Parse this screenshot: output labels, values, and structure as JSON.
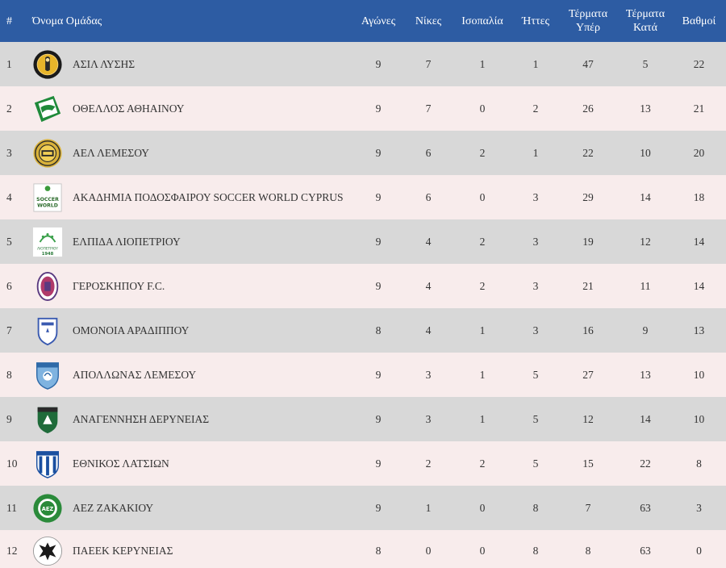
{
  "headers": {
    "pos": "#",
    "team": "Όνομα Ομάδας",
    "played": "Αγώνες",
    "wins": "Νίκες",
    "draws": "Ισοπαλία",
    "losses": "Ήττες",
    "gf": [
      "Τέρματα",
      "Υπέρ"
    ],
    "ga": [
      "Τέρματα",
      "Κατά"
    ],
    "points": "Βαθμοί"
  },
  "rows": [
    {
      "pos": "1",
      "team": "ΑΣΙΛ ΛΥΣΗΣ",
      "played": "9",
      "wins": "7",
      "draws": "1",
      "losses": "1",
      "gf": "47",
      "ga": "5",
      "points": "22",
      "logo_icon": "asil-lysis-crest-icon"
    },
    {
      "pos": "2",
      "team": "ΟΘΕΛΛΟΣ ΑΘΗΑΙΝΟΥ",
      "played": "9",
      "wins": "7",
      "draws": "0",
      "losses": "2",
      "gf": "26",
      "ga": "13",
      "points": "21",
      "logo_icon": "othellos-athienou-crest-icon"
    },
    {
      "pos": "3",
      "team": "ΑΕΛ ΛΕΜΕΣΟΥ",
      "played": "9",
      "wins": "6",
      "draws": "2",
      "losses": "1",
      "gf": "22",
      "ga": "10",
      "points": "20",
      "logo_icon": "ael-limassol-crest-icon"
    },
    {
      "pos": "4",
      "team": "ΑΚΑΔΗΜΙΑ ΠΟΔΟΣΦΑΙΡΟΥ SOCCER WORLD CYPRUS",
      "played": "9",
      "wins": "6",
      "draws": "0",
      "losses": "3",
      "gf": "29",
      "ga": "14",
      "points": "18",
      "logo_icon": "soccer-world-crest-icon",
      "logo_text": [
        "SOCCER",
        "WORLD"
      ]
    },
    {
      "pos": "5",
      "team": "ΕΛΠΙΔΑ ΛΙΟΠΕΤΡΙΟΥ",
      "played": "9",
      "wins": "4",
      "draws": "2",
      "losses": "3",
      "gf": "19",
      "ga": "12",
      "points": "14",
      "logo_icon": "elpida-liopetriou-crest-icon",
      "logo_text": [
        "ΛΙΟΠΕΤΡΙΟΥ",
        "1948"
      ]
    },
    {
      "pos": "6",
      "team": "ΓΕΡΟΣΚΗΠΟΥ F.C.",
      "played": "9",
      "wins": "4",
      "draws": "2",
      "losses": "3",
      "gf": "21",
      "ga": "11",
      "points": "14",
      "logo_icon": "geroskipou-crest-icon"
    },
    {
      "pos": "7",
      "team": "ΟΜΟΝΟΙΑ ΑΡΑΔΙΠΠΟΥ",
      "played": "8",
      "wins": "4",
      "draws": "1",
      "losses": "3",
      "gf": "16",
      "ga": "9",
      "points": "13",
      "logo_icon": "omonoia-aradippou-crest-icon"
    },
    {
      "pos": "8",
      "team": "ΑΠΟΛΛΩΝΑΣ ΛΕΜΕΣΟΥ",
      "played": "9",
      "wins": "3",
      "draws": "1",
      "losses": "5",
      "gf": "27",
      "ga": "13",
      "points": "10",
      "logo_icon": "apollon-limassol-crest-icon"
    },
    {
      "pos": "9",
      "team": "ΑΝΑΓΕΝΝΗΣΗ ΔΕΡΥΝΕΙΑΣ",
      "played": "9",
      "wins": "3",
      "draws": "1",
      "losses": "5",
      "gf": "12",
      "ga": "14",
      "points": "10",
      "logo_icon": "anagennisi-deryneias-crest-icon"
    },
    {
      "pos": "10",
      "team": "ΕΘΝΙΚΟΣ ΛΑΤΣΙΩΝ",
      "played": "9",
      "wins": "2",
      "draws": "2",
      "losses": "5",
      "gf": "15",
      "ga": "22",
      "points": "8",
      "logo_icon": "ethnikos-latsion-crest-icon"
    },
    {
      "pos": "11",
      "team": "ΑΕΖ ΖΑΚΑΚΙΟΥ",
      "played": "9",
      "wins": "1",
      "draws": "0",
      "losses": "8",
      "gf": "7",
      "ga": "63",
      "points": "3",
      "logo_icon": "aez-zakakiou-crest-icon",
      "logo_text": [
        "ΑΕΖ"
      ]
    },
    {
      "pos": "12",
      "team": "ΠΑΕΕΚ ΚΕΡΥΝΕΙΑΣ",
      "played": "8",
      "wins": "0",
      "draws": "0",
      "losses": "8",
      "gf": "8",
      "ga": "63",
      "points": "0",
      "logo_icon": "paeek-kerynias-crest-icon"
    }
  ],
  "colors": {
    "header_bg": "#2d5ca3",
    "row_odd": "#d8d8d8",
    "row_even": "#f8ecec",
    "text": "#333333"
  }
}
